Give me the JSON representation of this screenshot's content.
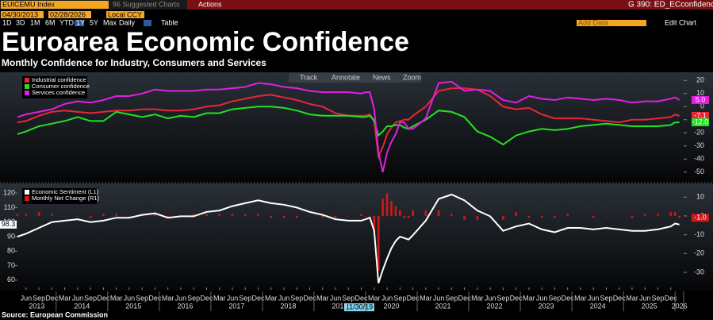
{
  "toolbar": {
    "ticker": "EUICEMU Index",
    "suggested": "96 Suggested Charts",
    "actions": "Actions",
    "page": "G 390: ED_ECconfidence",
    "start": "04/30/2013",
    "end": "02/28/2026",
    "currency": "Local CCY",
    "ranges": [
      "1D",
      "3D",
      "1M",
      "6M",
      "YTD",
      "1Y",
      "5Y",
      "Max"
    ],
    "frequency": "Daily",
    "table": "Table",
    "add_data": "Add Data",
    "edit": "Edit Chart"
  },
  "tools": [
    "Track",
    "Annotate",
    "News",
    "Zoom"
  ],
  "chart_data": [
    {
      "type": "line",
      "title": "Euroarea Economic Confidence",
      "subtitle": "Monthly Confidence for Industry, Consumers and Services",
      "x": [
        "2013-04",
        "2013-06",
        "2013-09",
        "2013-12",
        "2014-03",
        "2014-06",
        "2014-09",
        "2014-12",
        "2015-03",
        "2015-06",
        "2015-09",
        "2015-12",
        "2016-03",
        "2016-06",
        "2016-09",
        "2016-12",
        "2017-03",
        "2017-06",
        "2017-09",
        "2017-12",
        "2018-03",
        "2018-06",
        "2018-09",
        "2018-12",
        "2019-03",
        "2019-06",
        "2019-09",
        "2019-12",
        "2020-01",
        "2020-02",
        "2020-03",
        "2020-04",
        "2020-05",
        "2020-06",
        "2020-07",
        "2020-08",
        "2020-09",
        "2020-10",
        "2020-11",
        "2020-12",
        "2021-03",
        "2021-06",
        "2021-09",
        "2021-12",
        "2022-03",
        "2022-06",
        "2022-09",
        "2022-12",
        "2023-03",
        "2023-06",
        "2023-09",
        "2023-12",
        "2024-03",
        "2024-06",
        "2024-09",
        "2024-12",
        "2025-03",
        "2025-06",
        "2025-09",
        "2025-12",
        "2026-01",
        "2026-02"
      ],
      "xlim": [
        "2013-04",
        "2026-03"
      ],
      "ylim": [
        -55,
        25
      ],
      "yticks": [
        20,
        10,
        0,
        -10,
        -20,
        -30,
        -40,
        -50
      ],
      "legend": "upper left",
      "series": [
        {
          "name": "Industrial confidence",
          "color": "#e8263a",
          "last_label": "-7.1",
          "values": [
            -12,
            -11,
            -7,
            -4,
            -3,
            -4,
            -5,
            -4,
            -3,
            -3,
            -2,
            -2,
            -3,
            -3,
            -2,
            0,
            1,
            4,
            6,
            8,
            9,
            7,
            5,
            2,
            0,
            -5,
            -7,
            -7,
            -7,
            -6,
            -11,
            -38,
            -31,
            -21,
            -16,
            -12,
            -11,
            -10,
            -10,
            -7,
            0,
            12,
            14,
            14,
            13,
            8,
            0,
            -2,
            -1,
            -6,
            -9,
            -9,
            -9,
            -10,
            -11,
            -12,
            -10,
            -10,
            -9,
            -8,
            -6,
            -7.1
          ]
        },
        {
          "name": "Consumer confidence",
          "color": "#22e022",
          "last_label": "-12.0",
          "values": [
            -21,
            -19,
            -15,
            -13,
            -11,
            -8,
            -11,
            -11,
            -4,
            -6,
            -8,
            -6,
            -9,
            -7,
            -8,
            -5,
            -5,
            -2,
            -1,
            0,
            0,
            -1,
            -3,
            -6,
            -7,
            -7,
            -7,
            -8,
            -8,
            -7,
            -11,
            -22,
            -19,
            -15,
            -15,
            -14,
            -14,
            -16,
            -17,
            -15,
            -10,
            -3,
            -4,
            -8,
            -19,
            -23,
            -29,
            -22,
            -19,
            -17,
            -18,
            -17,
            -15,
            -14,
            -13,
            -14,
            -15,
            -15,
            -15,
            -14,
            -12,
            -12
          ]
        },
        {
          "name": "Services confidence",
          "color": "#e020e0",
          "last_label": "5.0",
          "values": [
            -8,
            -6,
            -4,
            -2,
            2,
            4,
            3,
            5,
            8,
            8,
            10,
            13,
            12,
            12,
            12,
            13,
            13,
            14,
            15,
            18,
            17,
            15,
            14,
            12,
            11,
            11,
            11,
            10,
            11,
            11,
            -2,
            -35,
            -50,
            -35,
            -27,
            -21,
            -12,
            -12,
            -17,
            -17,
            -9,
            18,
            19,
            12,
            13,
            12,
            5,
            3,
            8,
            6,
            5,
            7,
            6,
            5,
            6,
            5,
            3,
            4,
            4,
            6,
            7,
            5
          ]
        }
      ]
    },
    {
      "type": "line",
      "source": "Source: European Commission",
      "crosshair_label": "11/30/19",
      "x": [
        "2013-04",
        "2013-06",
        "2013-09",
        "2013-12",
        "2014-03",
        "2014-06",
        "2014-09",
        "2014-12",
        "2015-03",
        "2015-06",
        "2015-09",
        "2015-12",
        "2016-03",
        "2016-06",
        "2016-09",
        "2016-12",
        "2017-03",
        "2017-06",
        "2017-09",
        "2017-12",
        "2018-03",
        "2018-06",
        "2018-09",
        "2018-12",
        "2019-03",
        "2019-06",
        "2019-09",
        "2019-12",
        "2020-01",
        "2020-02",
        "2020-03",
        "2020-04",
        "2020-05",
        "2020-06",
        "2020-07",
        "2020-08",
        "2020-09",
        "2020-10",
        "2020-11",
        "2020-12",
        "2021-03",
        "2021-06",
        "2021-09",
        "2021-12",
        "2022-03",
        "2022-06",
        "2022-09",
        "2022-12",
        "2023-03",
        "2023-06",
        "2023-09",
        "2023-12",
        "2024-03",
        "2024-06",
        "2024-09",
        "2024-12",
        "2025-03",
        "2025-06",
        "2025-09",
        "2025-12",
        "2026-01",
        "2026-02"
      ],
      "xlim": [
        "2013-04",
        "2026-03"
      ],
      "xticks": [
        {
          "value": "2013-06",
          "label": "Jun"
        },
        {
          "value": "2013-09",
          "label": "Sep"
        },
        {
          "value": "2013-12",
          "label": "Dec"
        },
        {
          "value": "2014-03",
          "label": "Mar"
        },
        {
          "value": "2014-06",
          "label": "Jun"
        },
        {
          "value": "2014-09",
          "label": "Sep"
        },
        {
          "value": "2014-12",
          "label": "Dec"
        },
        {
          "value": "2015-03",
          "label": "Mar"
        },
        {
          "value": "2015-06",
          "label": "Jun"
        },
        {
          "value": "2015-09",
          "label": "Sep"
        },
        {
          "value": "2015-12",
          "label": "Dec"
        },
        {
          "value": "2016-03",
          "label": "Mar"
        },
        {
          "value": "2016-06",
          "label": "Jun"
        },
        {
          "value": "2016-09",
          "label": "Sep"
        },
        {
          "value": "2016-12",
          "label": "Dec"
        },
        {
          "value": "2017-03",
          "label": "Mar"
        },
        {
          "value": "2017-06",
          "label": "Jun"
        },
        {
          "value": "2017-09",
          "label": "Sep"
        },
        {
          "value": "2017-12",
          "label": "Dec"
        },
        {
          "value": "2018-03",
          "label": "Mar"
        },
        {
          "value": "2018-06",
          "label": "Jun"
        },
        {
          "value": "2018-09",
          "label": "Sep"
        },
        {
          "value": "2018-12",
          "label": "Dec"
        },
        {
          "value": "2019-03",
          "label": "Mar"
        },
        {
          "value": "2019-06",
          "label": "Jun"
        },
        {
          "value": "2019-09",
          "label": "Sep"
        },
        {
          "value": "2019-12",
          "label": "Dec"
        },
        {
          "value": "2020-03",
          "label": "Mar"
        },
        {
          "value": "2020-06",
          "label": "Jun"
        },
        {
          "value": "2020-09",
          "label": "Sep"
        },
        {
          "value": "2020-12",
          "label": "Dec"
        },
        {
          "value": "2021-03",
          "label": "Mar"
        },
        {
          "value": "2021-06",
          "label": "Jun"
        },
        {
          "value": "2021-09",
          "label": "Sep"
        },
        {
          "value": "2021-12",
          "label": "Dec"
        },
        {
          "value": "2022-03",
          "label": "Mar"
        },
        {
          "value": "2022-06",
          "label": "Jun"
        },
        {
          "value": "2022-09",
          "label": "Sep"
        },
        {
          "value": "2022-12",
          "label": "Dec"
        },
        {
          "value": "2023-03",
          "label": "Mar"
        },
        {
          "value": "2023-06",
          "label": "Jun"
        },
        {
          "value": "2023-09",
          "label": "Sep"
        },
        {
          "value": "2023-12",
          "label": "Dec"
        },
        {
          "value": "2024-03",
          "label": "Mar"
        },
        {
          "value": "2024-06",
          "label": "Jun"
        },
        {
          "value": "2024-09",
          "label": "Sep"
        },
        {
          "value": "2024-12",
          "label": "Dec"
        },
        {
          "value": "2025-03",
          "label": "Mar"
        },
        {
          "value": "2025-06",
          "label": "Jun"
        },
        {
          "value": "2025-09",
          "label": "Sep"
        },
        {
          "value": "2025-12",
          "label": "Dec"
        }
      ],
      "year_ticks": [
        2013,
        2014,
        2015,
        2016,
        2017,
        2018,
        2019,
        2020,
        2021,
        2022,
        2023,
        2024,
        2025,
        2026
      ],
      "ylim": [
        55,
        125
      ],
      "yticks": [
        120,
        110,
        100,
        90,
        80,
        70,
        60
      ],
      "y2lim": [
        -38,
        16
      ],
      "y2ticks": [
        10,
        0,
        -10,
        -20,
        -30
      ],
      "legend": "upper left",
      "series": [
        {
          "name": "Economic Sentiment (L1)",
          "color": "#ffffff",
          "last_label": "98.3",
          "values": [
            90,
            92,
            96,
            100,
            101,
            102,
            100,
            101,
            103,
            103,
            105,
            106,
            103,
            104,
            104,
            107,
            108,
            111,
            113,
            115,
            113,
            112,
            110,
            107,
            105,
            102,
            101,
            101,
            102,
            103,
            94,
            58,
            67,
            75,
            82,
            87,
            90,
            89,
            88,
            91,
            101,
            116,
            119,
            115,
            108,
            104,
            94,
            97,
            99,
            95,
            93,
            96,
            96,
            95,
            96,
            95,
            94,
            94,
            95,
            97,
            99,
            98.3
          ]
        },
        {
          "name": "Monthly Net Change (R1)",
          "color": "#d01818",
          "axis": "y2",
          "kind": "bar",
          "last_label": "-1.0",
          "values": [
            1,
            1,
            2,
            1,
            0,
            0,
            -1,
            1,
            1,
            0,
            1,
            1,
            -1,
            0,
            1,
            1,
            1,
            1,
            1,
            1,
            -1,
            -1,
            -1,
            0,
            -1,
            -1,
            0,
            1,
            0,
            0,
            -9,
            -29,
            9,
            12,
            8,
            5,
            3,
            -1,
            -1,
            3,
            3,
            3,
            1,
            -2,
            -2,
            -1,
            -2,
            2,
            -1,
            -1,
            -1,
            1,
            0,
            -1,
            0,
            0,
            -1,
            1,
            1,
            2,
            2,
            -1
          ]
        }
      ]
    }
  ]
}
